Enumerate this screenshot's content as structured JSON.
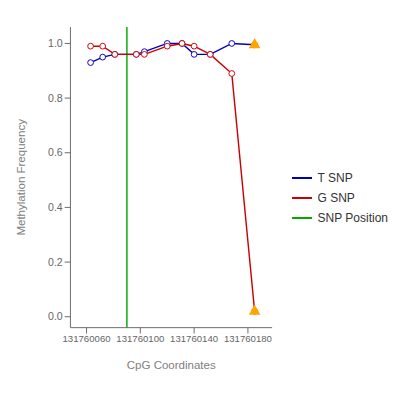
{
  "chart_data": {
    "type": "line",
    "xlabel": "CpG Coordinates",
    "ylabel": "Methylation Frequency",
    "x": [
      131760063,
      131760072,
      131760081,
      131760097,
      131760103,
      131760120,
      131760131,
      131760140,
      131760152,
      131760168,
      131760185
    ],
    "series": [
      {
        "name": "T SNP",
        "color": "#0000BB",
        "marker": "circle",
        "values": [
          0.93,
          0.95,
          0.96,
          0.96,
          0.97,
          1.0,
          1.0,
          0.96,
          0.96,
          1.0,
          0.995
        ]
      },
      {
        "name": "G SNP",
        "color": "#CC0000",
        "marker": "circle",
        "values": [
          0.99,
          0.99,
          0.96,
          0.96,
          0.96,
          0.99,
          1.0,
          0.99,
          0.96,
          0.89,
          0.02
        ]
      },
      {
        "name": "SNP Position",
        "type": "vline",
        "color": "#00AA00",
        "x": 131760090
      },
      {
        "type": "scatter",
        "color": "#FFA500",
        "marker": "triangle",
        "x": [
          131760185,
          131760185
        ],
        "values": [
          0.995,
          0.02
        ]
      }
    ],
    "xlim": [
      131760048,
      131760198
    ],
    "ylim": [
      -0.04,
      1.06
    ],
    "xticks": [
      131760060,
      131760100,
      131760140,
      131760180
    ],
    "yticks": [
      {
        "value": 0.0,
        "label": "0.0"
      },
      0.2,
      0.4,
      0.6,
      0.8,
      {
        "value": 1.0,
        "label": "1.0"
      }
    ],
    "grid": false,
    "legend": "right"
  }
}
